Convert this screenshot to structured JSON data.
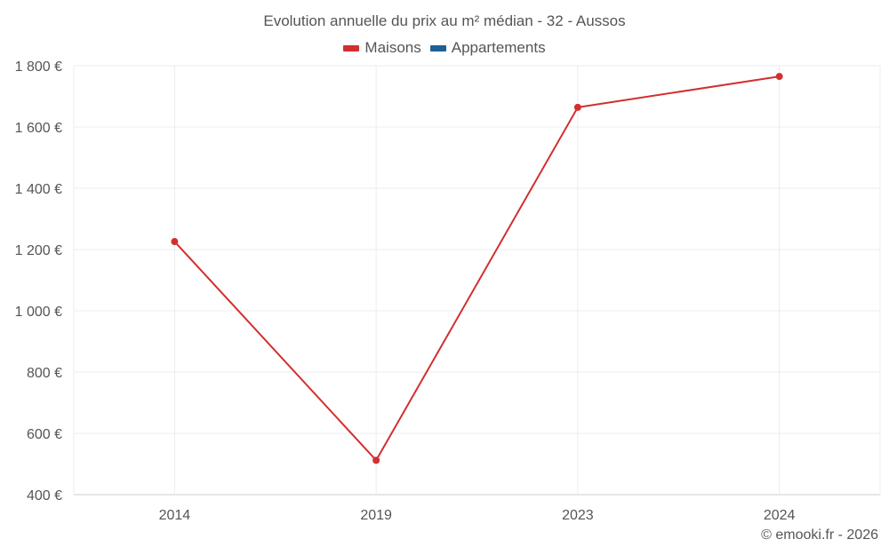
{
  "chart_data": {
    "type": "line",
    "title": "Evolution annuelle du prix au m² médian - 32 - Aussos",
    "x": [
      "2014",
      "2019",
      "2023",
      "2024"
    ],
    "series": [
      {
        "name": "Maisons",
        "color": "#d32f2f",
        "values": [
          1226,
          512,
          1664,
          1765
        ]
      },
      {
        "name": "Appartements",
        "color": "#1f5f95",
        "values": [
          null,
          null,
          null,
          null
        ]
      }
    ],
    "yticks": [
      400,
      600,
      800,
      1000,
      1200,
      1400,
      1600,
      1800
    ],
    "ytick_labels": [
      "400 €",
      "600 €",
      "800 €",
      "1 000 €",
      "1 200 €",
      "1 400 €",
      "1 600 €",
      "1 800 €"
    ],
    "ylim": [
      400,
      1800
    ],
    "grid": true,
    "legend_position": "top"
  },
  "footer": {
    "credit": "© emooki.fr - 2026"
  }
}
